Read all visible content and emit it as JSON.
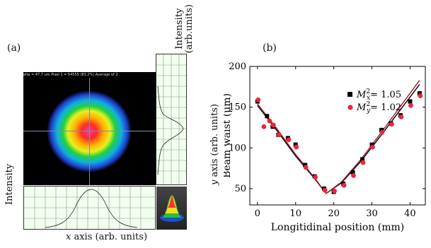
{
  "panel_a": {
    "label": "(a)",
    "header_text": "elta = 47.7 um Pixel 1 = 54555 (83.2%)      Average of 2",
    "vertical_profile_title_line1": "Intensity",
    "vertical_profile_title_line2": "(arb.units)",
    "horizontal_profile_ylabel": "Intensity",
    "x_axis_label_var": "x",
    "x_axis_label_rest": " axis (arb. units)",
    "y_axis_label_var": "y",
    "y_axis_label_rest": " axis (arb. units)"
  },
  "panel_b": {
    "label": "(b)"
  },
  "chart_data": {
    "type": "scatter",
    "xlabel": "Longitidinal position (mm)",
    "ylabel": "Beam waist (μm)",
    "xlim": [
      -2,
      44
    ],
    "ylim": [
      30,
      200
    ],
    "xticks": [
      0,
      10,
      20,
      30,
      40
    ],
    "yticks": [
      50,
      100,
      150,
      200
    ],
    "legend_position": "top-right",
    "series": [
      {
        "name": "M_x^2= 1.05",
        "marker": "square",
        "color": "#000000",
        "x": [
          0,
          2.5,
          4,
          5.5,
          8,
          10,
          12.5,
          15,
          17.5,
          20,
          22.5,
          25,
          27.5,
          30,
          32.5,
          35,
          37.5,
          40,
          42.5
        ],
        "y": [
          157,
          139,
          126,
          116,
          112,
          104,
          79,
          65,
          50,
          46,
          56,
          70,
          86,
          104,
          122,
          130,
          140,
          157,
          167
        ]
      },
      {
        "name": "M_y^2= 1.02",
        "marker": "circle",
        "color": "#e8283c",
        "x": [
          0,
          1.5,
          3,
          4,
          5.5,
          8,
          10,
          12.5,
          15,
          17.5,
          20,
          22.5,
          25,
          27.5,
          30,
          32.5,
          35,
          37.5,
          40,
          42.5
        ],
        "y": [
          159,
          126,
          133,
          128,
          116,
          110,
          101,
          76,
          64,
          48,
          47,
          54,
          66,
          82,
          101,
          119,
          129,
          138,
          152,
          164
        ]
      }
    ],
    "fit_curves": [
      {
        "color": "#000000",
        "x": [
          0,
          5,
          10,
          15,
          18,
          22,
          27,
          32,
          37,
          42.5
        ],
        "y": [
          152,
          122,
          90,
          62,
          44,
          57,
          83,
          113,
          144,
          178
        ]
      },
      {
        "color": "#b0102a",
        "x": [
          0,
          5,
          10,
          15,
          18,
          22,
          27,
          32,
          37,
          42.5
        ],
        "y": [
          154,
          124,
          92,
          63,
          44,
          58,
          85,
          116,
          148,
          183
        ]
      }
    ]
  },
  "colors": {
    "accent": "#e8283c"
  }
}
